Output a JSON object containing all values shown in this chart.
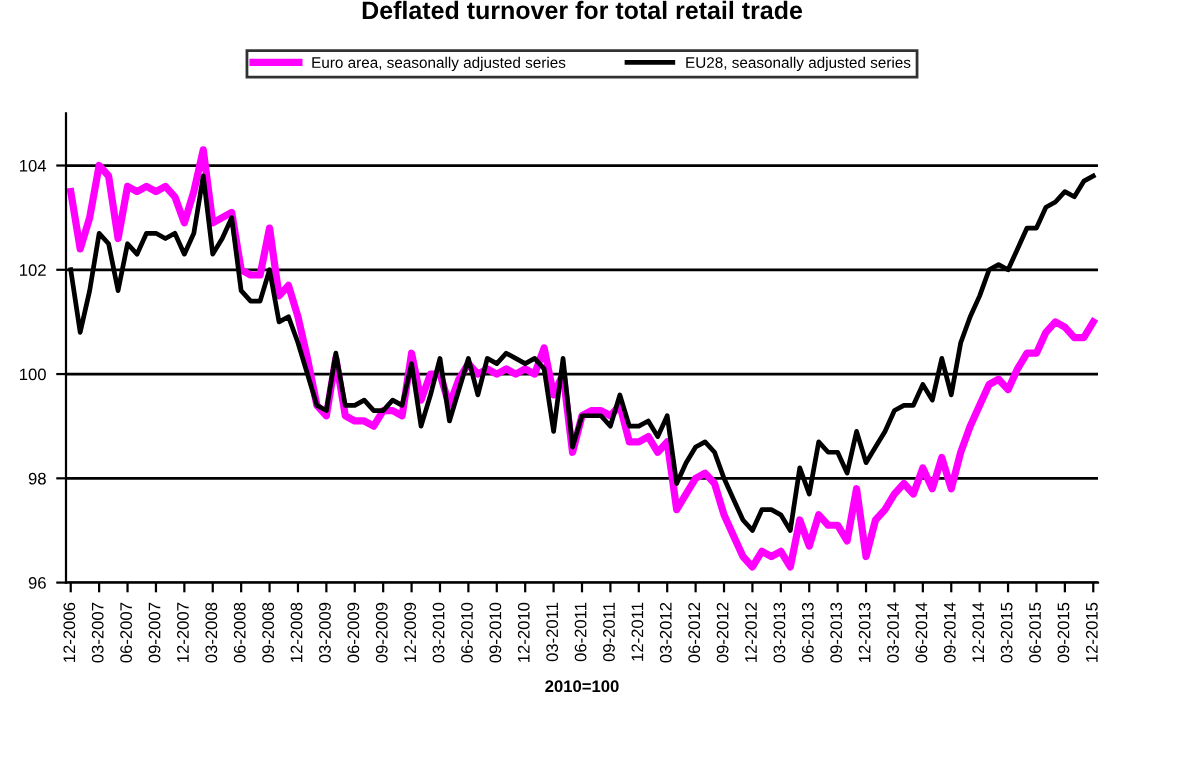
{
  "chart_data": {
    "type": "line",
    "title": "Deflated turnover for total retail trade",
    "xlabel": "2010=100",
    "categories": [
      "12-2006",
      null,
      null,
      "03-2007",
      null,
      null,
      "06-2007",
      null,
      null,
      "09-2007",
      null,
      null,
      "12-2007",
      null,
      null,
      "03-2008",
      null,
      null,
      "06-2008",
      null,
      null,
      "09-2008",
      null,
      null,
      "12-2008",
      null,
      null,
      "03-2009",
      null,
      null,
      "06-2009",
      null,
      null,
      "09-2009",
      null,
      null,
      "12-2009",
      null,
      null,
      "03-2010",
      null,
      null,
      "06-2010",
      null,
      null,
      "09-2010",
      null,
      null,
      "12-2010",
      null,
      null,
      "03-2011",
      null,
      null,
      "06-2011",
      null,
      null,
      "09-2011",
      null,
      null,
      "12-2011",
      null,
      null,
      "03-2012",
      null,
      null,
      "06-2012",
      null,
      null,
      "09-2012",
      null,
      null,
      "12-2012",
      null,
      null,
      "03-2013",
      null,
      null,
      "06-2013",
      null,
      null,
      "09-2013",
      null,
      null,
      "12-2013",
      null,
      null,
      "03-2014",
      null,
      null,
      "06-2014",
      null,
      null,
      "09-2014",
      null,
      null,
      "12-2014",
      null,
      null,
      "03-2015",
      null,
      null,
      "06-2015",
      null,
      null,
      "09-2015",
      null,
      null,
      "12-2015"
    ],
    "series": [
      {
        "name": "Euro area, seasonally adjusted series",
        "color": "#ff00ff",
        "values": [
          103.5,
          102.4,
          103.0,
          104.0,
          103.8,
          102.6,
          103.6,
          103.5,
          103.6,
          103.5,
          103.6,
          103.4,
          102.9,
          103.5,
          104.3,
          102.9,
          103.0,
          103.1,
          102.0,
          101.9,
          101.9,
          102.8,
          101.5,
          101.7,
          101.1,
          100.3,
          99.4,
          99.2,
          100.3,
          99.2,
          99.1,
          99.1,
          99.0,
          99.3,
          99.3,
          99.2,
          100.4,
          99.5,
          100.0,
          100.0,
          99.4,
          99.9,
          100.2,
          100.0,
          100.1,
          100.0,
          100.1,
          100.0,
          100.1,
          100.0,
          100.5,
          99.6,
          100.0,
          98.5,
          99.2,
          99.3,
          99.3,
          99.2,
          99.4,
          98.7,
          98.7,
          98.8,
          98.5,
          98.7,
          97.4,
          97.7,
          98.0,
          98.1,
          97.9,
          97.3,
          96.9,
          96.5,
          96.3,
          96.6,
          96.5,
          96.6,
          96.3,
          97.2,
          96.7,
          97.3,
          97.1,
          97.1,
          96.8,
          97.8,
          96.5,
          97.2,
          97.4,
          97.7,
          97.9,
          97.7,
          98.2,
          97.8,
          98.4,
          97.8,
          98.5,
          99.0,
          99.4,
          99.8,
          99.9,
          99.7,
          100.1,
          100.4,
          100.4,
          100.8,
          101.0,
          100.9,
          100.7,
          100.7,
          101.0
        ]
      },
      {
        "name": "EU28, seasonally adjusted series",
        "color": "#000000",
        "values": [
          102.0,
          100.8,
          101.6,
          102.7,
          102.5,
          101.6,
          102.5,
          102.3,
          102.7,
          102.7,
          102.6,
          102.7,
          102.3,
          102.7,
          103.8,
          102.3,
          102.6,
          103.0,
          101.6,
          101.4,
          101.4,
          102.0,
          101.0,
          101.1,
          100.6,
          100.0,
          99.4,
          99.3,
          100.4,
          99.4,
          99.4,
          99.5,
          99.3,
          99.3,
          99.5,
          99.4,
          100.2,
          99.0,
          99.6,
          100.3,
          99.1,
          99.7,
          100.3,
          99.6,
          100.3,
          100.2,
          100.4,
          100.3,
          100.2,
          100.3,
          100.1,
          98.9,
          100.3,
          98.6,
          99.2,
          99.2,
          99.2,
          99.0,
          99.6,
          99.0,
          99.0,
          99.1,
          98.8,
          99.2,
          97.9,
          98.3,
          98.6,
          98.7,
          98.5,
          98.0,
          97.6,
          97.2,
          97.0,
          97.4,
          97.4,
          97.3,
          97.0,
          98.2,
          97.7,
          98.7,
          98.5,
          98.5,
          98.1,
          98.9,
          98.3,
          98.6,
          98.9,
          99.3,
          99.4,
          99.4,
          99.8,
          99.5,
          100.3,
          99.6,
          100.6,
          101.1,
          101.5,
          102.0,
          102.1,
          102.0,
          102.4,
          102.8,
          102.8,
          103.2,
          103.3,
          103.5,
          103.4,
          103.7,
          103.8
        ]
      }
    ],
    "ylim": [
      96,
      105
    ],
    "yticks": [
      96,
      98,
      100,
      102,
      104
    ],
    "grid": "y",
    "legend": "top",
    "marker": "none",
    "line_style": "solid"
  }
}
